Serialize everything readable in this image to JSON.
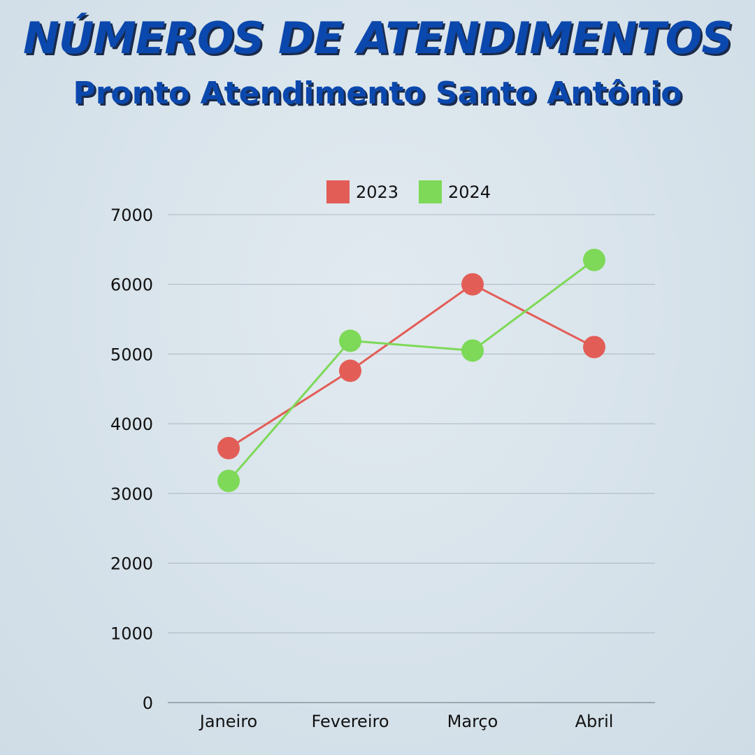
{
  "header": {
    "title": "NÚMEROS DE ATENDIMENTOS",
    "subtitle": "Pronto Atendimento Santo Antônio"
  },
  "chart_data": {
    "type": "line",
    "title": "NÚMEROS DE ATENDIMENTOS",
    "subtitle": "Pronto Atendimento Santo Antônio",
    "xlabel": "",
    "ylabel": "",
    "categories": [
      "Janeiro",
      "Fevereiro",
      "Março",
      "Abril"
    ],
    "series": [
      {
        "name": "2023",
        "color": "#e35d57",
        "values": [
          3650,
          4760,
          6000,
          5100
        ]
      },
      {
        "name": "2024",
        "color": "#7dd957",
        "values": [
          3180,
          5190,
          5050,
          6350
        ]
      }
    ],
    "ylim": [
      0,
      7000
    ],
    "yticks": [
      "0",
      "1000",
      "2000",
      "3000",
      "4000",
      "5000",
      "6000",
      "7000"
    ],
    "grid": true,
    "legend": "top-center"
  }
}
